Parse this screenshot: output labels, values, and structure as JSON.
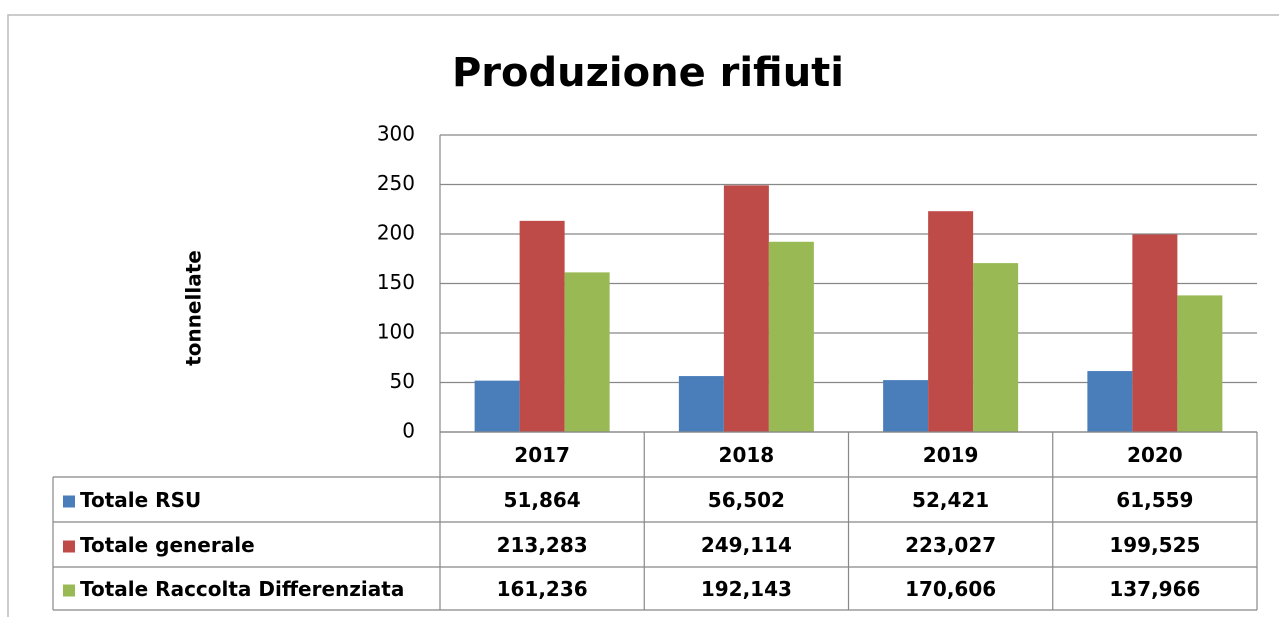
{
  "chart_data": {
    "type": "bar",
    "title": "Produzione rifiuti",
    "y_label": "tonnellate",
    "categories": [
      "2017",
      "2018",
      "2019",
      "2020"
    ],
    "series": [
      {
        "name": "Totale RSU",
        "color": "#4a7ebb",
        "values": [
          51.864,
          56.502,
          52.421,
          61.559
        ],
        "value_labels": [
          "51,864",
          "56,502",
          "52,421",
          "61,559"
        ]
      },
      {
        "name": "Totale generale",
        "color": "#be4b48",
        "values": [
          213.283,
          249.114,
          223.027,
          199.525
        ],
        "value_labels": [
          "213,283",
          "249,114",
          "223,027",
          "199,525"
        ]
      },
      {
        "name": "Totale Raccolta Differenziata",
        "color": "#98b954",
        "values": [
          161.236,
          192.143,
          170.606,
          137.966
        ],
        "value_labels": [
          "161,236",
          "192,143",
          "170,606",
          "137,966"
        ]
      }
    ],
    "ylim": [
      0,
      300
    ],
    "yticks": [
      0,
      50,
      100,
      150,
      200,
      250,
      300
    ],
    "grid": true
  }
}
